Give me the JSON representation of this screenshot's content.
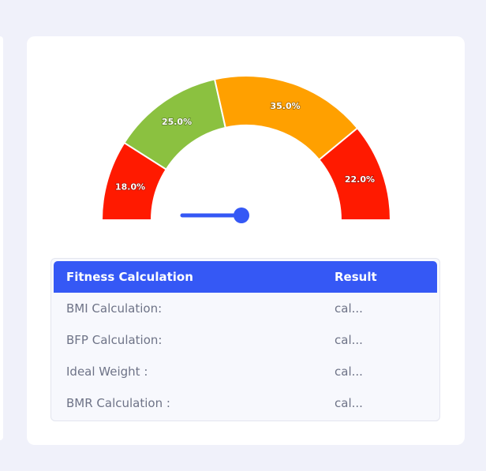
{
  "gauge": {
    "segments": [
      {
        "label": "18.0%",
        "value": 18.0,
        "color": "#ff1a00"
      },
      {
        "label": "25.0%",
        "value": 25.0,
        "color": "#8bc140"
      },
      {
        "label": "35.0%",
        "value": 35.0,
        "color": "#ffa000"
      },
      {
        "label": "22.0%",
        "value": 22.0,
        "color": "#ff1a00"
      }
    ],
    "needle_color": "#3558f5",
    "needle_value_percent": 0
  },
  "table": {
    "headers": {
      "calculation": "Fitness Calculation",
      "result": "Result"
    },
    "rows": [
      {
        "label": "BMI Calculation:",
        "value": "cal..."
      },
      {
        "label": "BFP Calculation:",
        "value": "cal..."
      },
      {
        "label": "Ideal Weight :",
        "value": "cal..."
      },
      {
        "label": "BMR Calculation :",
        "value": "cal..."
      }
    ],
    "header_color": "#3558f5"
  }
}
